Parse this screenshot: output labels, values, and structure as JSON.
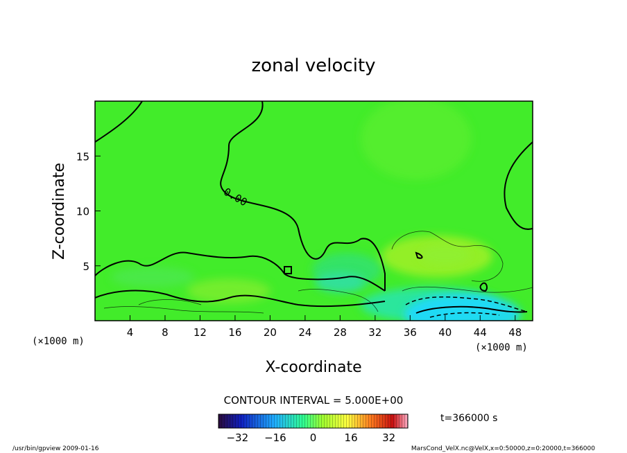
{
  "chart_data": {
    "type": "heatmap",
    "title": "zonal velocity",
    "xlabel": "X-coordinate",
    "ylabel": "Z-coordinate",
    "x_units": "(×1000 m)",
    "y_units": "(×1000 m)",
    "xlim": [
      0,
      50
    ],
    "ylim": [
      0,
      20
    ],
    "x_ticks": [
      4,
      8,
      12,
      16,
      20,
      24,
      28,
      32,
      36,
      40,
      44,
      48
    ],
    "y_ticks": [
      5,
      10,
      15
    ],
    "contour_label": "0.00",
    "contour_interval_text": "CONTOUR INTERVAL = 5.000E+00",
    "time_text": "t=366000 s",
    "colorbar": {
      "range": [
        -40,
        40
      ],
      "ticks": [
        -32,
        -16,
        0,
        16,
        32
      ],
      "colormap": [
        "#2a0a3a",
        "#1020c0",
        "#20b0ff",
        "#30ff90",
        "#a0ff30",
        "#ffff40",
        "#ff8020",
        "#c81010",
        "#ffb0c8"
      ]
    },
    "footer_left": "/usr/bin/gpview   2009-01-16",
    "footer_right": "MarsCond_VelX.nc@VelX,x=0:50000,z=0:20000,t=366000",
    "field_summary": {
      "background_value": 0,
      "features": [
        {
          "name": "negative jet near surface",
          "x": 42,
          "z": 0.6,
          "value": -16
        },
        {
          "name": "weak positive region aloft",
          "x": 40,
          "z": 6,
          "value": 4
        },
        {
          "name": "weak negative mid-domain",
          "x": 28,
          "z": 3.5,
          "value": -4
        }
      ]
    }
  }
}
